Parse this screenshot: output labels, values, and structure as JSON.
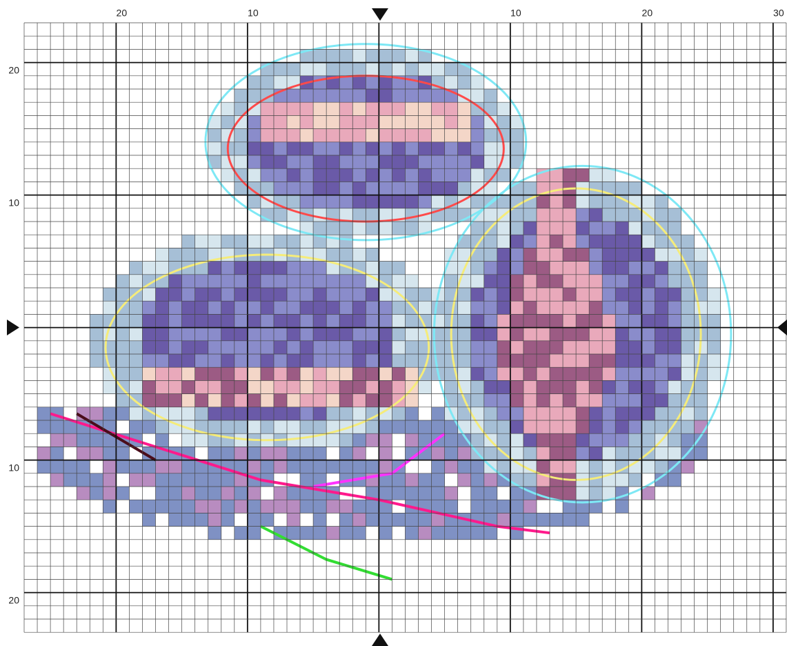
{
  "axis": {
    "top": [
      "20",
      "10",
      "10",
      "20",
      "30"
    ],
    "left": [
      "20",
      "10",
      "10",
      "20"
    ]
  }
}
